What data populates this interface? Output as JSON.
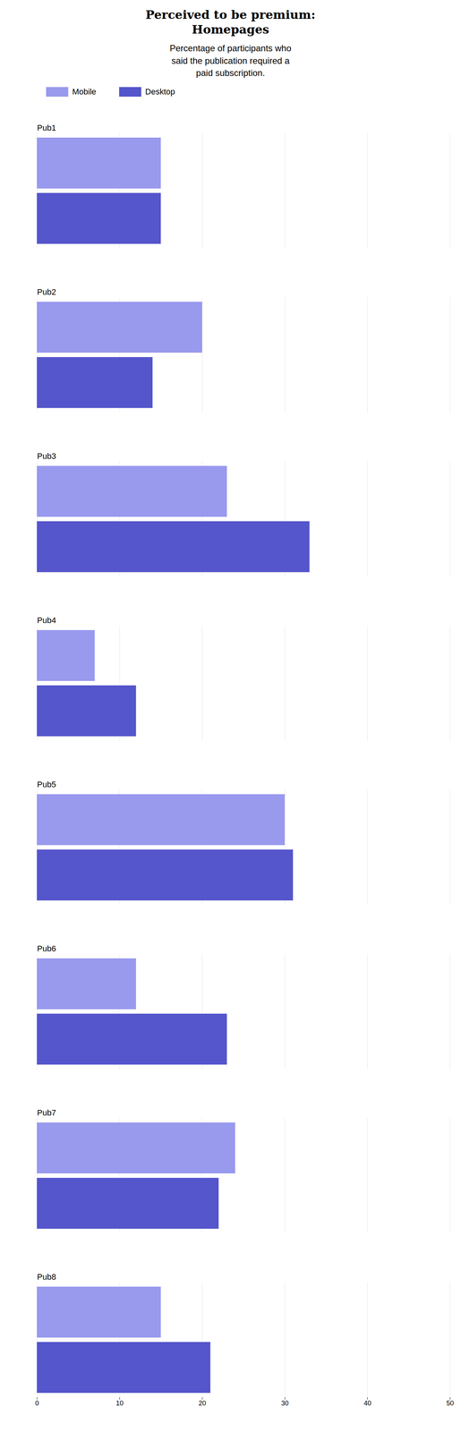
{
  "chart_data": {
    "type": "bar",
    "orientation": "horizontal",
    "title": "Perceived to be premium:\nHomepages",
    "subtitle": "Percentage of participants who\nsaid the publication required a\npaid subscription.",
    "categories": [
      "Pub1",
      "Pub2",
      "Pub3",
      "Pub4",
      "Pub5",
      "Pub6",
      "Pub7",
      "Pub8"
    ],
    "series": [
      {
        "name": "Mobile",
        "color": "#9999ee",
        "values": [
          15,
          20,
          23,
          7,
          30,
          12,
          24,
          15
        ]
      },
      {
        "name": "Desktop",
        "color": "#5555cc",
        "values": [
          15,
          14,
          33,
          12,
          31,
          23,
          22,
          21
        ]
      }
    ],
    "xlim": [
      0,
      50
    ],
    "xticks": [
      0,
      10,
      20,
      30,
      40,
      50
    ],
    "grid": true,
    "legend": "top"
  }
}
